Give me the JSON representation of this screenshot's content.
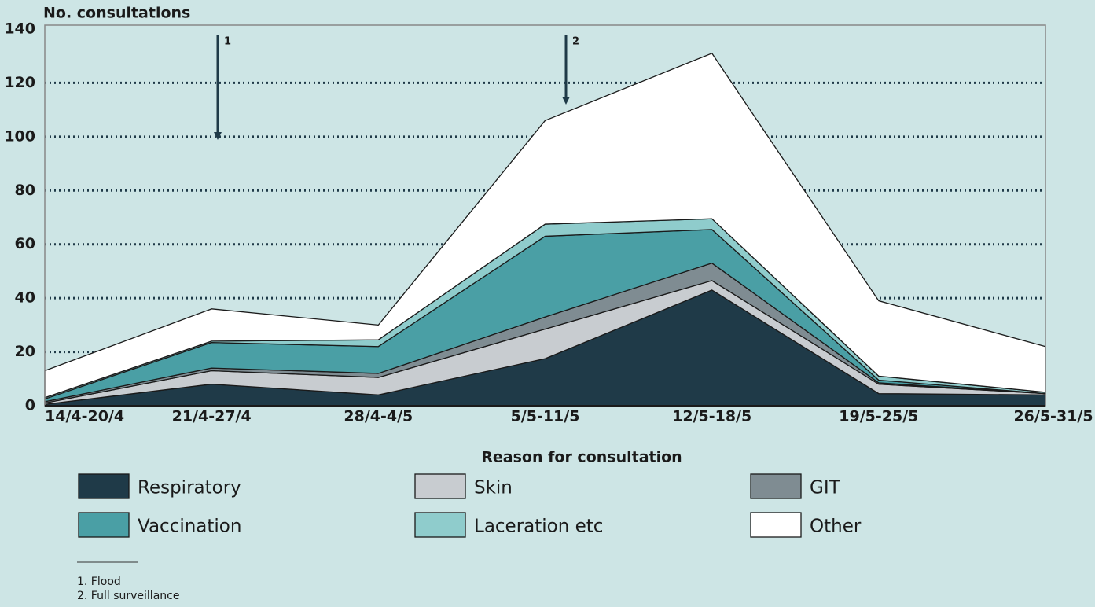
{
  "chart_data": {
    "type": "stacked_area",
    "y_label": "No. consultations",
    "x_label": "Reason for consultation",
    "categories": [
      "14/4-20/4",
      "21/4-27/4",
      "28/4-4/5",
      "5/5-11/5",
      "12/5-18/5",
      "19/5-25/5",
      "26/5-31/5"
    ],
    "series": [
      {
        "name": "Respiratory",
        "color": "#1f3a48",
        "values": [
          0.5,
          8,
          4,
          17.5,
          43,
          4.5,
          4
        ]
      },
      {
        "name": "Skin",
        "color": "#c8ccd0",
        "values": [
          0.5,
          5,
          6.5,
          11,
          3.5,
          3.5,
          0.5
        ]
      },
      {
        "name": "GIT",
        "color": "#7f8c92",
        "values": [
          0.5,
          1,
          1.5,
          4.5,
          6.5,
          0.5,
          0
        ]
      },
      {
        "name": "Vaccination",
        "color": "#4a9fa5",
        "values": [
          1,
          9.5,
          10,
          30,
          12.5,
          1,
          0
        ]
      },
      {
        "name": "Laceration etc",
        "color": "#8fcccc",
        "values": [
          0.5,
          0.5,
          2.5,
          4.5,
          4,
          1.5,
          0.5
        ]
      },
      {
        "name": "Other",
        "color": "#ffffff",
        "values": [
          10,
          12,
          5.5,
          38.5,
          61.5,
          28,
          17
        ]
      }
    ],
    "ylim": [
      0,
      140
    ],
    "yticks": [
      0,
      20,
      40,
      60,
      80,
      100,
      120,
      140
    ],
    "grid": true,
    "annotations": [
      "1",
      "2"
    ],
    "footnotes": [
      "1. Flood",
      "2. Full surveillance"
    ]
  }
}
